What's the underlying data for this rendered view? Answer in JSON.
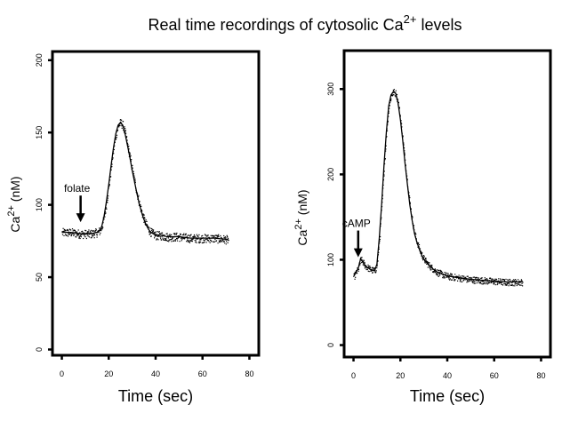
{
  "figure": {
    "title_main": "Real time recordings of cytosolic Ca",
    "title_sup": "2+",
    "title_tail": " levels"
  },
  "chart_data": [
    {
      "type": "line",
      "name": "folate-response",
      "xlabel": "Time (sec)",
      "ylabel_main": "Ca",
      "ylabel_sup": "2+",
      "ylabel_unit": " (nM)",
      "xlim": [
        -4,
        84
      ],
      "ylim": [
        -4,
        206
      ],
      "xticks": [
        0,
        20,
        40,
        60,
        80
      ],
      "yticks": [
        0,
        50,
        100,
        150,
        200
      ],
      "annotation": {
        "text": "folate",
        "x": 8,
        "y": 88
      },
      "noise_nM": 3,
      "x": [
        0,
        4,
        8,
        12,
        15,
        16,
        17,
        18,
        19,
        20,
        21,
        22,
        23,
        24,
        25,
        26,
        27,
        28,
        29,
        30,
        31,
        32,
        33,
        34,
        35,
        36,
        37,
        38,
        39,
        40,
        42,
        45,
        50,
        55,
        60,
        65,
        71
      ],
      "y": [
        81,
        81,
        80,
        80,
        81,
        82,
        85,
        92,
        102,
        114,
        127,
        139,
        149,
        155,
        157,
        155,
        149,
        141,
        133,
        124,
        116,
        108,
        101,
        95,
        90,
        86,
        83,
        81,
        80,
        79,
        79,
        78,
        78,
        77,
        77,
        77,
        76
      ]
    },
    {
      "type": "line",
      "name": "camp-response",
      "xlabel": "Time (sec)",
      "ylabel_main": "Ca",
      "ylabel_sup": "2+",
      "ylabel_unit": " (nM)",
      "xlim": [
        -4,
        84
      ],
      "ylim": [
        -14,
        345
      ],
      "xticks": [
        0,
        20,
        40,
        60,
        80
      ],
      "yticks": [
        0,
        100,
        200,
        300
      ],
      "annotation": {
        "text": "cAMP",
        "x": 2,
        "y": 103
      },
      "noise_nM": 4,
      "x": [
        0,
        1,
        2,
        3,
        4,
        5,
        6,
        7,
        8,
        9,
        10,
        11,
        12,
        13,
        14,
        15,
        16,
        17,
        18,
        19,
        20,
        21,
        22,
        23,
        24,
        25,
        26,
        27,
        28,
        29,
        30,
        32,
        34,
        36,
        38,
        40,
        45,
        50,
        55,
        60,
        65,
        72
      ],
      "y": [
        80,
        85,
        90,
        101,
        97,
        93,
        91,
        89,
        88,
        87,
        95,
        125,
        165,
        210,
        250,
        280,
        293,
        297,
        295,
        284,
        264,
        240,
        213,
        188,
        165,
        146,
        131,
        121,
        113,
        106,
        101,
        94,
        89,
        85,
        83,
        81,
        79,
        77,
        76,
        75,
        74,
        74
      ]
    }
  ]
}
